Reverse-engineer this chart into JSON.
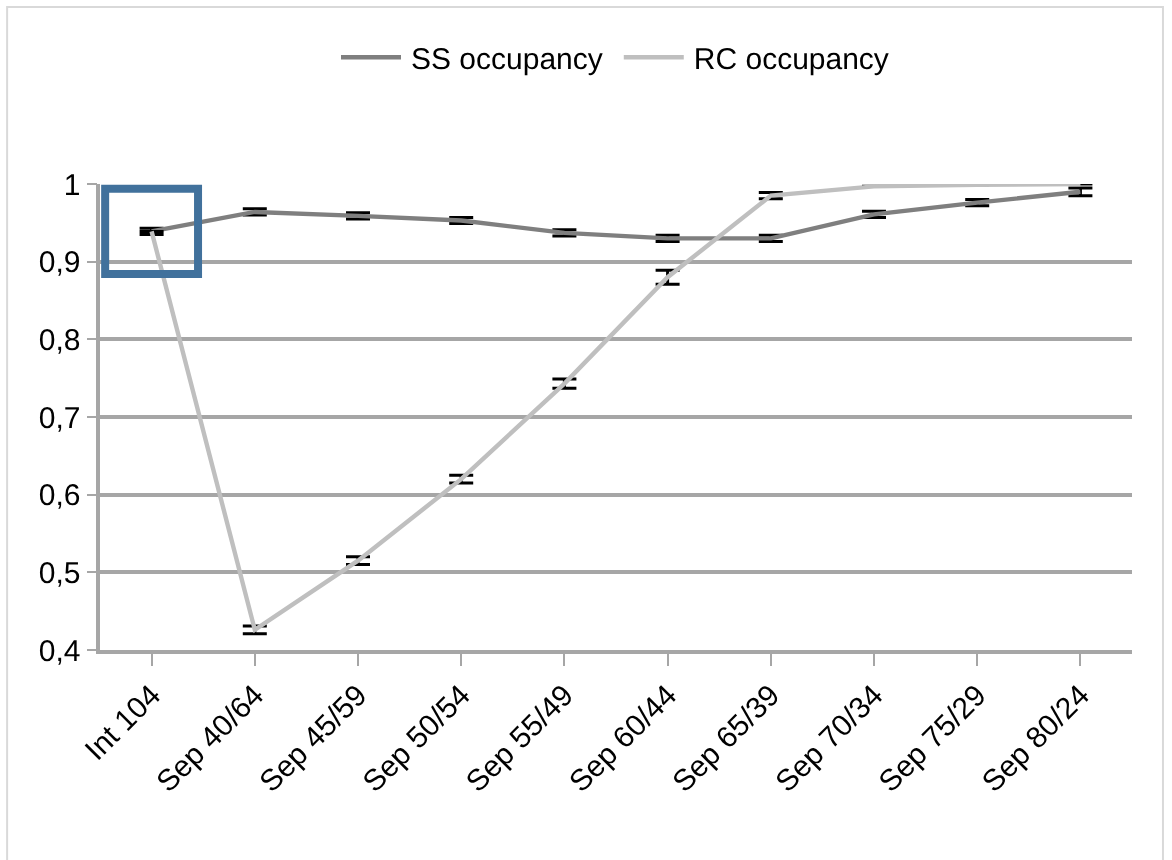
{
  "chart_data": {
    "type": "line",
    "categories": [
      "Int 104",
      "Sep 40/64",
      "Sep 45/59",
      "Sep 50/54",
      "Sep 55/49",
      "Sep 60/44",
      "Sep 65/39",
      "Sep 70/34",
      "Sep 75/29",
      "Sep 80/24"
    ],
    "series": [
      {
        "name": "SS occupancy",
        "color": "#7f7f7f",
        "values": [
          0.939,
          0.964,
          0.959,
          0.953,
          0.937,
          0.93,
          0.93,
          0.961,
          0.976,
          0.99
        ],
        "errors": [
          0.004,
          0.004,
          0.004,
          0.004,
          0.004,
          0.004,
          0.004,
          0.004,
          0.004,
          0.005
        ]
      },
      {
        "name": "RC occupancy",
        "color": "#bfbfbf",
        "values": [
          0.939,
          0.426,
          0.515,
          0.62,
          0.743,
          0.88,
          0.985,
          0.997,
          0.999,
          1
        ],
        "errors": [
          null,
          0.005,
          0.005,
          0.005,
          0.006,
          0.009,
          0.004,
          null,
          null,
          null
        ]
      }
    ],
    "ylim": [
      0.4,
      1
    ],
    "yticks": [
      {
        "value": 0.4,
        "label": "0,4"
      },
      {
        "value": 0.5,
        "label": "0,5"
      },
      {
        "value": 0.6,
        "label": "0,6"
      },
      {
        "value": 0.7,
        "label": "0,7"
      },
      {
        "value": 0.8,
        "label": "0,8"
      },
      {
        "value": 0.9,
        "label": "0,9"
      },
      1
    ],
    "grid": "y",
    "legend": "top",
    "marker": "none",
    "line_style": "solid"
  }
}
